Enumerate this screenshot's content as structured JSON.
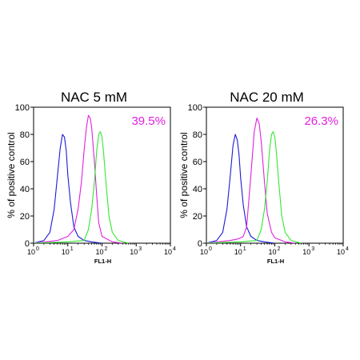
{
  "colors": {
    "blue": "#1b1bd6",
    "magenta": "#e020e0",
    "green": "#33e633",
    "percent_text": "#e020e0"
  },
  "chart_data": [
    {
      "type": "line",
      "title": "NAC 5 mM",
      "annotation": "39.5%",
      "xlabel": "FL1-H",
      "ylabel": "% of positive control",
      "x_scale": "log",
      "xlim": [
        1,
        10000
      ],
      "ylim": [
        0,
        100
      ],
      "yticks": [
        0,
        20,
        40,
        60,
        80,
        100
      ],
      "xticks": [
        {
          "base": "10",
          "exp": "0"
        },
        {
          "base": "10",
          "exp": "1"
        },
        {
          "base": "10",
          "exp": "2"
        },
        {
          "base": "10",
          "exp": "3"
        },
        {
          "base": "10",
          "exp": "4"
        }
      ],
      "grid": false,
      "series": [
        {
          "color": "blue",
          "x": [
            1,
            2,
            3,
            4,
            5,
            6,
            7,
            8,
            9,
            10,
            12,
            15,
            20,
            30,
            50,
            100
          ],
          "values": [
            0,
            2,
            8,
            25,
            50,
            70,
            80,
            78,
            68,
            50,
            30,
            12,
            5,
            2,
            1,
            0
          ]
        },
        {
          "color": "magenta",
          "x": [
            1,
            5,
            10,
            15,
            20,
            25,
            30,
            35,
            40,
            45,
            50,
            60,
            70,
            80,
            100,
            200,
            400
          ],
          "values": [
            0,
            2,
            5,
            10,
            25,
            45,
            68,
            85,
            94,
            92,
            85,
            60,
            35,
            15,
            5,
            1,
            0
          ]
        },
        {
          "color": "green",
          "x": [
            1,
            10,
            30,
            40,
            50,
            60,
            70,
            80,
            90,
            100,
            110,
            130,
            160,
            200,
            300,
            600
          ],
          "values": [
            0,
            1,
            2,
            10,
            25,
            45,
            68,
            80,
            82,
            78,
            68,
            45,
            20,
            8,
            2,
            0
          ]
        }
      ]
    },
    {
      "type": "line",
      "title": "NAC 20 mM",
      "annotation": "26.3%",
      "xlabel": "FL1-H",
      "ylabel": "% of positive control",
      "x_scale": "log",
      "xlim": [
        1,
        10000
      ],
      "ylim": [
        0,
        100
      ],
      "yticks": [
        0,
        20,
        40,
        60,
        80,
        100
      ],
      "xticks": [
        {
          "base": "10",
          "exp": "0"
        },
        {
          "base": "10",
          "exp": "1"
        },
        {
          "base": "10",
          "exp": "2"
        },
        {
          "base": "10",
          "exp": "3"
        },
        {
          "base": "10",
          "exp": "4"
        }
      ],
      "grid": false,
      "series": [
        {
          "color": "blue",
          "x": [
            1,
            2,
            3,
            4,
            5,
            6,
            7,
            8,
            9,
            10,
            12,
            15,
            20,
            30,
            50,
            100
          ],
          "values": [
            0,
            2,
            8,
            25,
            50,
            72,
            80,
            76,
            65,
            48,
            28,
            12,
            5,
            2,
            1,
            0
          ]
        },
        {
          "color": "magenta",
          "x": [
            1,
            5,
            8,
            10,
            12,
            15,
            20,
            25,
            30,
            35,
            40,
            50,
            60,
            80,
            100,
            200,
            400
          ],
          "values": [
            0,
            2,
            3,
            4,
            5,
            12,
            50,
            82,
            92,
            88,
            75,
            45,
            22,
            8,
            4,
            1,
            0
          ]
        },
        {
          "color": "green",
          "x": [
            1,
            10,
            30,
            40,
            50,
            60,
            70,
            80,
            90,
            100,
            110,
            130,
            160,
            200,
            300,
            600
          ],
          "values": [
            0,
            1,
            2,
            10,
            25,
            45,
            68,
            80,
            82,
            78,
            68,
            45,
            20,
            8,
            2,
            0
          ]
        }
      ]
    }
  ]
}
